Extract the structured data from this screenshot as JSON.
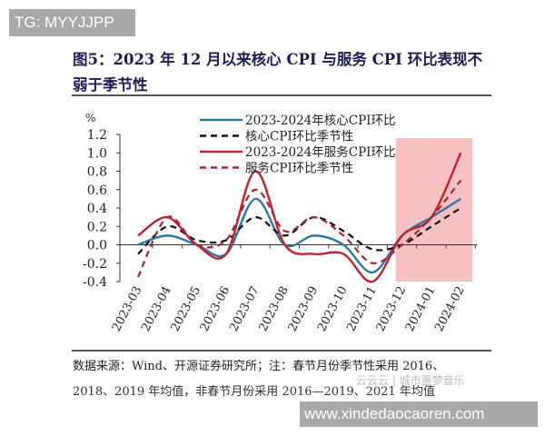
{
  "watermarks": {
    "top": "TG: MYYJJPP",
    "bottom": "www.xindedaocaoren.com",
    "faint": "云云云 | 城市噩梦音乐"
  },
  "title": {
    "line1": "图5：2023 年 12 月以来核心 CPI 与服务 CPI 环比表现不",
    "line2": "弱于季节性"
  },
  "footer": {
    "line1": "数据来源：Wind、开源证券研究所；注：春节月份季节性采用 2016、",
    "line2": "2018、2019 年均值，非春节月份采用 2016—2019、2021 年均值"
  },
  "chart_data": {
    "type": "line",
    "ylabel": "%",
    "ylim": [
      -0.4,
      1.2
    ],
    "yticks": [
      "1.2",
      "1.0",
      "0.8",
      "0.6",
      "0.4",
      "0.2",
      "0.0",
      "-0.2",
      "-0.4"
    ],
    "categories": [
      "2023-03",
      "2023-04",
      "2023-05",
      "2023-06",
      "2023-07",
      "2023-08",
      "2023-09",
      "2023-10",
      "2023-11",
      "2023-12",
      "2024-01",
      "2024-02"
    ],
    "highlight_range": [
      "2023-12",
      "2024-02"
    ],
    "highlight_color": "#f4b6b6",
    "legend_position": "top-center",
    "series": [
      {
        "name": "2023-2024年核心CPI环比",
        "color": "#2a7aa8",
        "dash": false,
        "values": [
          0.0,
          0.1,
          0.0,
          -0.1,
          0.5,
          0.0,
          0.1,
          0.0,
          -0.3,
          0.1,
          0.3,
          0.5
        ]
      },
      {
        "name": "核心CPI环比季节性",
        "color": "#111111",
        "dash": true,
        "values": [
          -0.1,
          0.2,
          0.05,
          0.05,
          0.3,
          0.1,
          0.3,
          0.15,
          -0.05,
          0.0,
          0.2,
          0.4
        ]
      },
      {
        "name": "2023-2024年服务CPI环比",
        "color": "#c8202a",
        "dash": false,
        "values": [
          0.1,
          0.3,
          0.0,
          -0.1,
          0.8,
          0.0,
          -0.1,
          -0.1,
          -0.4,
          0.1,
          0.3,
          1.0
        ]
      },
      {
        "name": "服务CPI环比季节性",
        "color": "#a8243a",
        "dash": true,
        "values": [
          -0.35,
          0.3,
          0.0,
          0.05,
          0.6,
          0.15,
          0.3,
          0.1,
          -0.2,
          0.0,
          0.3,
          0.7
        ]
      }
    ]
  }
}
